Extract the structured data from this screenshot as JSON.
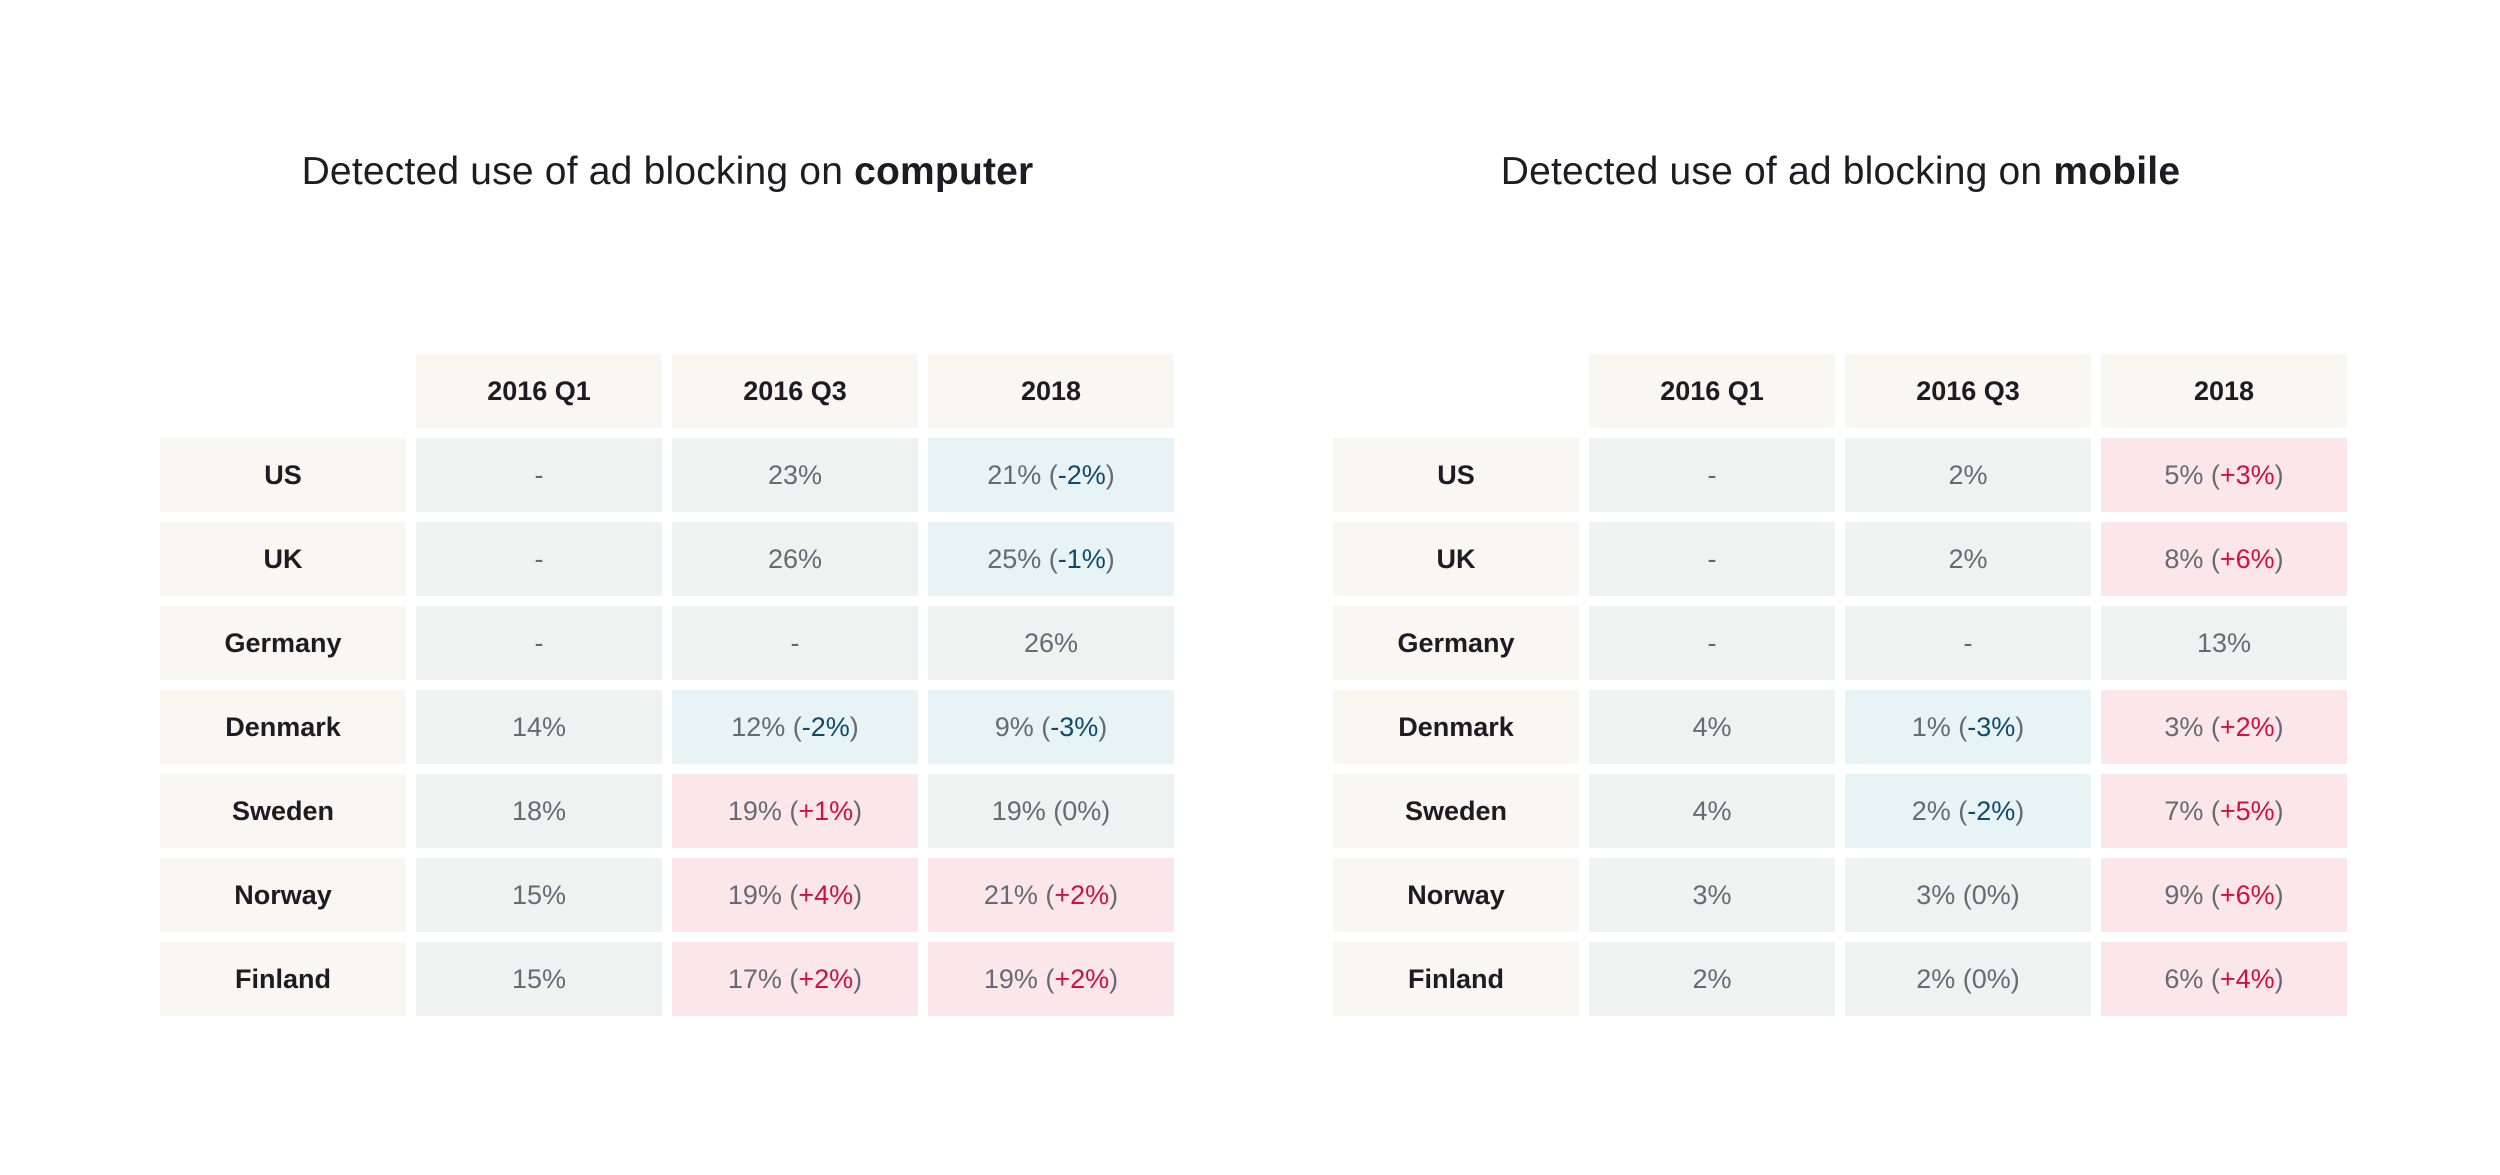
{
  "chart_data": [
    {
      "type": "table",
      "title_prefix": "Detected use of ad blocking on ",
      "title_emphasis": "computer",
      "columns": [
        "2016 Q1",
        "2016 Q3",
        "2018"
      ],
      "rows": [
        {
          "label": "US",
          "cells": [
            {
              "value": "-",
              "change": "",
              "dir": ""
            },
            {
              "value": "23%",
              "change": "",
              "dir": ""
            },
            {
              "value": "21%",
              "change": "-2%",
              "dir": "neg"
            }
          ]
        },
        {
          "label": "UK",
          "cells": [
            {
              "value": "-",
              "change": "",
              "dir": ""
            },
            {
              "value": "26%",
              "change": "",
              "dir": ""
            },
            {
              "value": "25%",
              "change": "-1%",
              "dir": "neg"
            }
          ]
        },
        {
          "label": "Germany",
          "cells": [
            {
              "value": "-",
              "change": "",
              "dir": ""
            },
            {
              "value": "-",
              "change": "",
              "dir": ""
            },
            {
              "value": "26%",
              "change": "",
              "dir": ""
            }
          ]
        },
        {
          "label": "Denmark",
          "cells": [
            {
              "value": "14%",
              "change": "",
              "dir": ""
            },
            {
              "value": "12%",
              "change": "-2%",
              "dir": "neg"
            },
            {
              "value": "9%",
              "change": "-3%",
              "dir": "neg"
            }
          ]
        },
        {
          "label": "Sweden",
          "cells": [
            {
              "value": "18%",
              "change": "",
              "dir": ""
            },
            {
              "value": "19%",
              "change": "+1%",
              "dir": "pos"
            },
            {
              "value": "19%",
              "change": "0%",
              "dir": "zero"
            }
          ]
        },
        {
          "label": "Norway",
          "cells": [
            {
              "value": "15%",
              "change": "",
              "dir": ""
            },
            {
              "value": "19%",
              "change": "+4%",
              "dir": "pos"
            },
            {
              "value": "21%",
              "change": "+2%",
              "dir": "pos"
            }
          ]
        },
        {
          "label": "Finland",
          "cells": [
            {
              "value": "15%",
              "change": "",
              "dir": ""
            },
            {
              "value": "17%",
              "change": "+2%",
              "dir": "pos"
            },
            {
              "value": "19%",
              "change": "+2%",
              "dir": "pos"
            }
          ]
        }
      ]
    },
    {
      "type": "table",
      "title_prefix": "Detected use of ad blocking on ",
      "title_emphasis": "mobile",
      "columns": [
        "2016 Q1",
        "2016 Q3",
        "2018"
      ],
      "rows": [
        {
          "label": "US",
          "cells": [
            {
              "value": "-",
              "change": "",
              "dir": ""
            },
            {
              "value": "2%",
              "change": "",
              "dir": ""
            },
            {
              "value": "5%",
              "change": "+3%",
              "dir": "pos"
            }
          ]
        },
        {
          "label": "UK",
          "cells": [
            {
              "value": "-",
              "change": "",
              "dir": ""
            },
            {
              "value": "2%",
              "change": "",
              "dir": ""
            },
            {
              "value": "8%",
              "change": "+6%",
              "dir": "pos"
            }
          ]
        },
        {
          "label": "Germany",
          "cells": [
            {
              "value": "-",
              "change": "",
              "dir": ""
            },
            {
              "value": "-",
              "change": "",
              "dir": ""
            },
            {
              "value": "13%",
              "change": "",
              "dir": ""
            }
          ]
        },
        {
          "label": "Denmark",
          "cells": [
            {
              "value": "4%",
              "change": "",
              "dir": ""
            },
            {
              "value": "1%",
              "change": "-3%",
              "dir": "neg"
            },
            {
              "value": "3%",
              "change": "+2%",
              "dir": "pos"
            }
          ]
        },
        {
          "label": "Sweden",
          "cells": [
            {
              "value": "4%",
              "change": "",
              "dir": ""
            },
            {
              "value": "2%",
              "change": "-2%",
              "dir": "neg"
            },
            {
              "value": "7%",
              "change": "+5%",
              "dir": "pos"
            }
          ]
        },
        {
          "label": "Norway",
          "cells": [
            {
              "value": "3%",
              "change": "",
              "dir": ""
            },
            {
              "value": "3%",
              "change": "0%",
              "dir": "zero"
            },
            {
              "value": "9%",
              "change": "+6%",
              "dir": "pos"
            }
          ]
        },
        {
          "label": "Finland",
          "cells": [
            {
              "value": "2%",
              "change": "",
              "dir": ""
            },
            {
              "value": "2%",
              "change": "0%",
              "dir": "zero"
            },
            {
              "value": "6%",
              "change": "+4%",
              "dir": "pos"
            }
          ]
        }
      ]
    }
  ]
}
